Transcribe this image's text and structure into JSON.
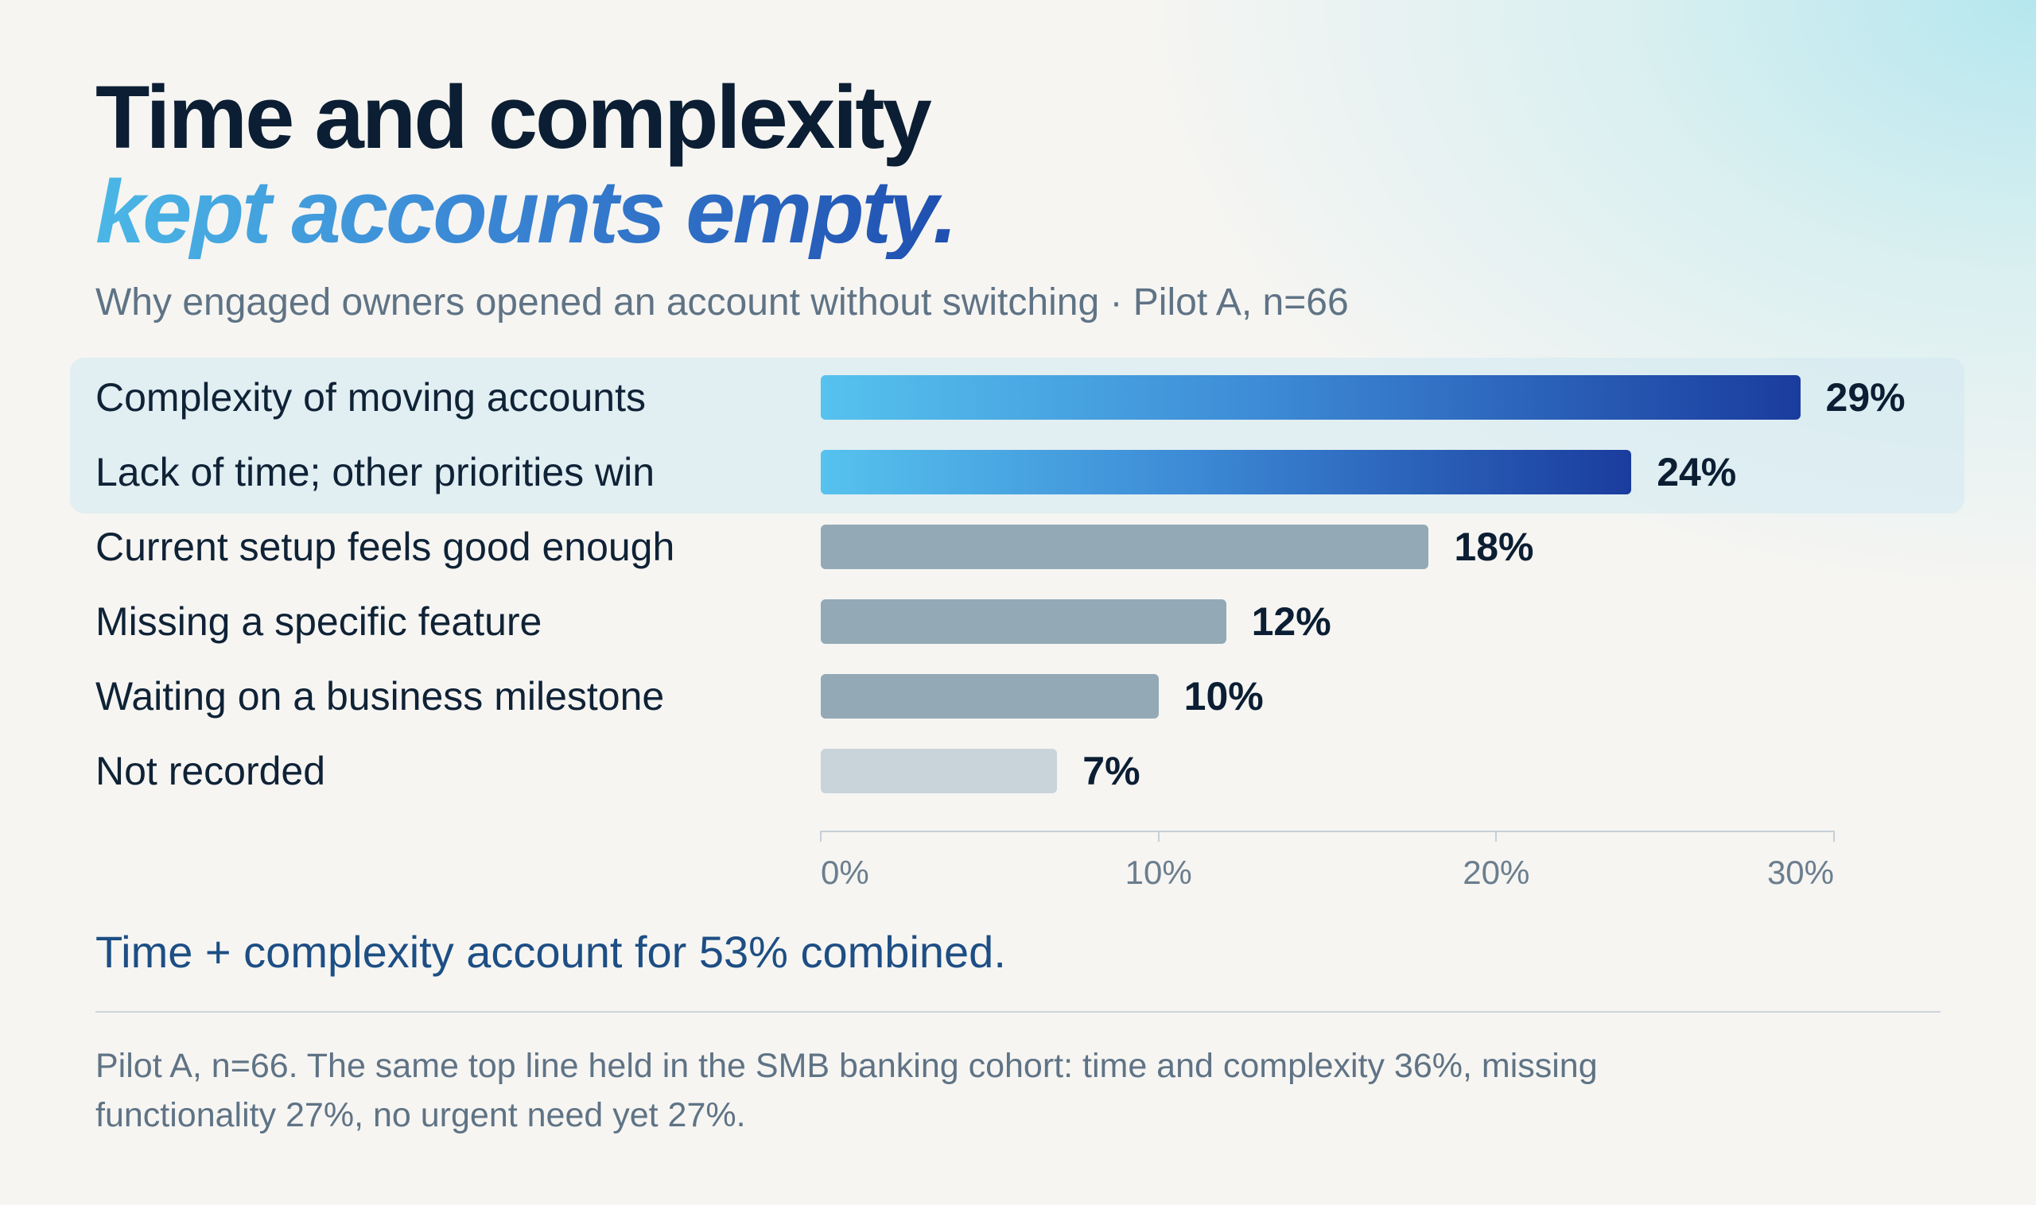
{
  "header": {
    "title_line1": "Time and complexity",
    "title_line2": "kept accounts empty.",
    "subtitle": "Why engaged owners opened an account without switching · Pilot A, n=66"
  },
  "chart_data": {
    "type": "bar",
    "orientation": "horizontal",
    "categories": [
      "Complexity of moving accounts",
      "Lack of time; other priorities win",
      "Current setup feels good enough",
      "Missing a specific feature",
      "Waiting on a business milestone",
      "Not recorded"
    ],
    "values": [
      29,
      24,
      18,
      12,
      10,
      7
    ],
    "value_labels": [
      "29%",
      "24%",
      "18%",
      "12%",
      "10%",
      "7%"
    ],
    "highlighted": [
      true,
      true,
      false,
      false,
      false,
      false
    ],
    "xlim": [
      0,
      30
    ],
    "x_ticks": [
      0,
      10,
      20,
      30
    ],
    "x_tick_labels": [
      "0%",
      "10%",
      "20%",
      "30%"
    ],
    "grid": false,
    "colors": {
      "highlight_start": "#56c2ee",
      "highlight_end": "#1a3c9e",
      "default": "#93a9b6",
      "muted": "#c9d3da"
    }
  },
  "callout": "Time + complexity account for 53% combined.",
  "footnote": "Pilot A, n=66. The same top line held in the SMB banking cohort: time and complexity 36%, missing functionality 27%, no urgent need yet 27%."
}
